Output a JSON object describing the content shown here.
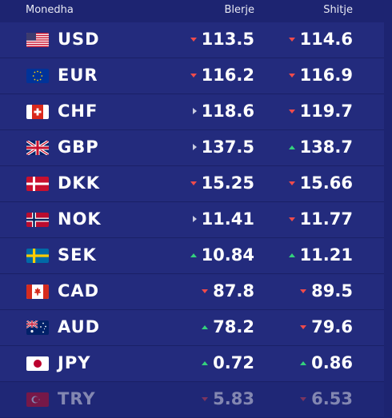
{
  "header": {
    "currency": "Monedha",
    "buy": "Blerje",
    "sell": "Shitje"
  },
  "rows": [
    {
      "code": "USD",
      "flag": "us-flag-icon",
      "buy": "113.5",
      "buy_dir": "down",
      "sell": "114.6",
      "sell_dir": "down"
    },
    {
      "code": "EUR",
      "flag": "eu-flag-icon",
      "buy": "116.2",
      "buy_dir": "down",
      "sell": "116.9",
      "sell_dir": "down"
    },
    {
      "code": "CHF",
      "flag": "ch-flag-icon",
      "buy": "118.6",
      "buy_dir": "right",
      "sell": "119.7",
      "sell_dir": "down"
    },
    {
      "code": "GBP",
      "flag": "gb-flag-icon",
      "buy": "137.5",
      "buy_dir": "right",
      "sell": "138.7",
      "sell_dir": "up"
    },
    {
      "code": "DKK",
      "flag": "dk-flag-icon",
      "buy": "15.25",
      "buy_dir": "down",
      "sell": "15.66",
      "sell_dir": "down"
    },
    {
      "code": "NOK",
      "flag": "no-flag-icon",
      "buy": "11.41",
      "buy_dir": "right",
      "sell": "11.77",
      "sell_dir": "down"
    },
    {
      "code": "SEK",
      "flag": "se-flag-icon",
      "buy": "10.84",
      "buy_dir": "up",
      "sell": "11.21",
      "sell_dir": "up"
    },
    {
      "code": "CAD",
      "flag": "ca-flag-icon",
      "buy": "87.8",
      "buy_dir": "down",
      "sell": "89.5",
      "sell_dir": "down"
    },
    {
      "code": "AUD",
      "flag": "au-flag-icon",
      "buy": "78.2",
      "buy_dir": "up",
      "sell": "79.6",
      "sell_dir": "down"
    },
    {
      "code": "JPY",
      "flag": "jp-flag-icon",
      "buy": "0.72",
      "buy_dir": "up",
      "sell": "0.86",
      "sell_dir": "up"
    },
    {
      "code": "TRY",
      "flag": "tr-flag-icon",
      "buy": "5.83",
      "buy_dir": "down",
      "sell": "6.53",
      "sell_dir": "down"
    }
  ],
  "colors": {
    "background": "#1d2471",
    "row": "#232b7d",
    "down": "#ef4b4b",
    "up": "#34d17c"
  }
}
